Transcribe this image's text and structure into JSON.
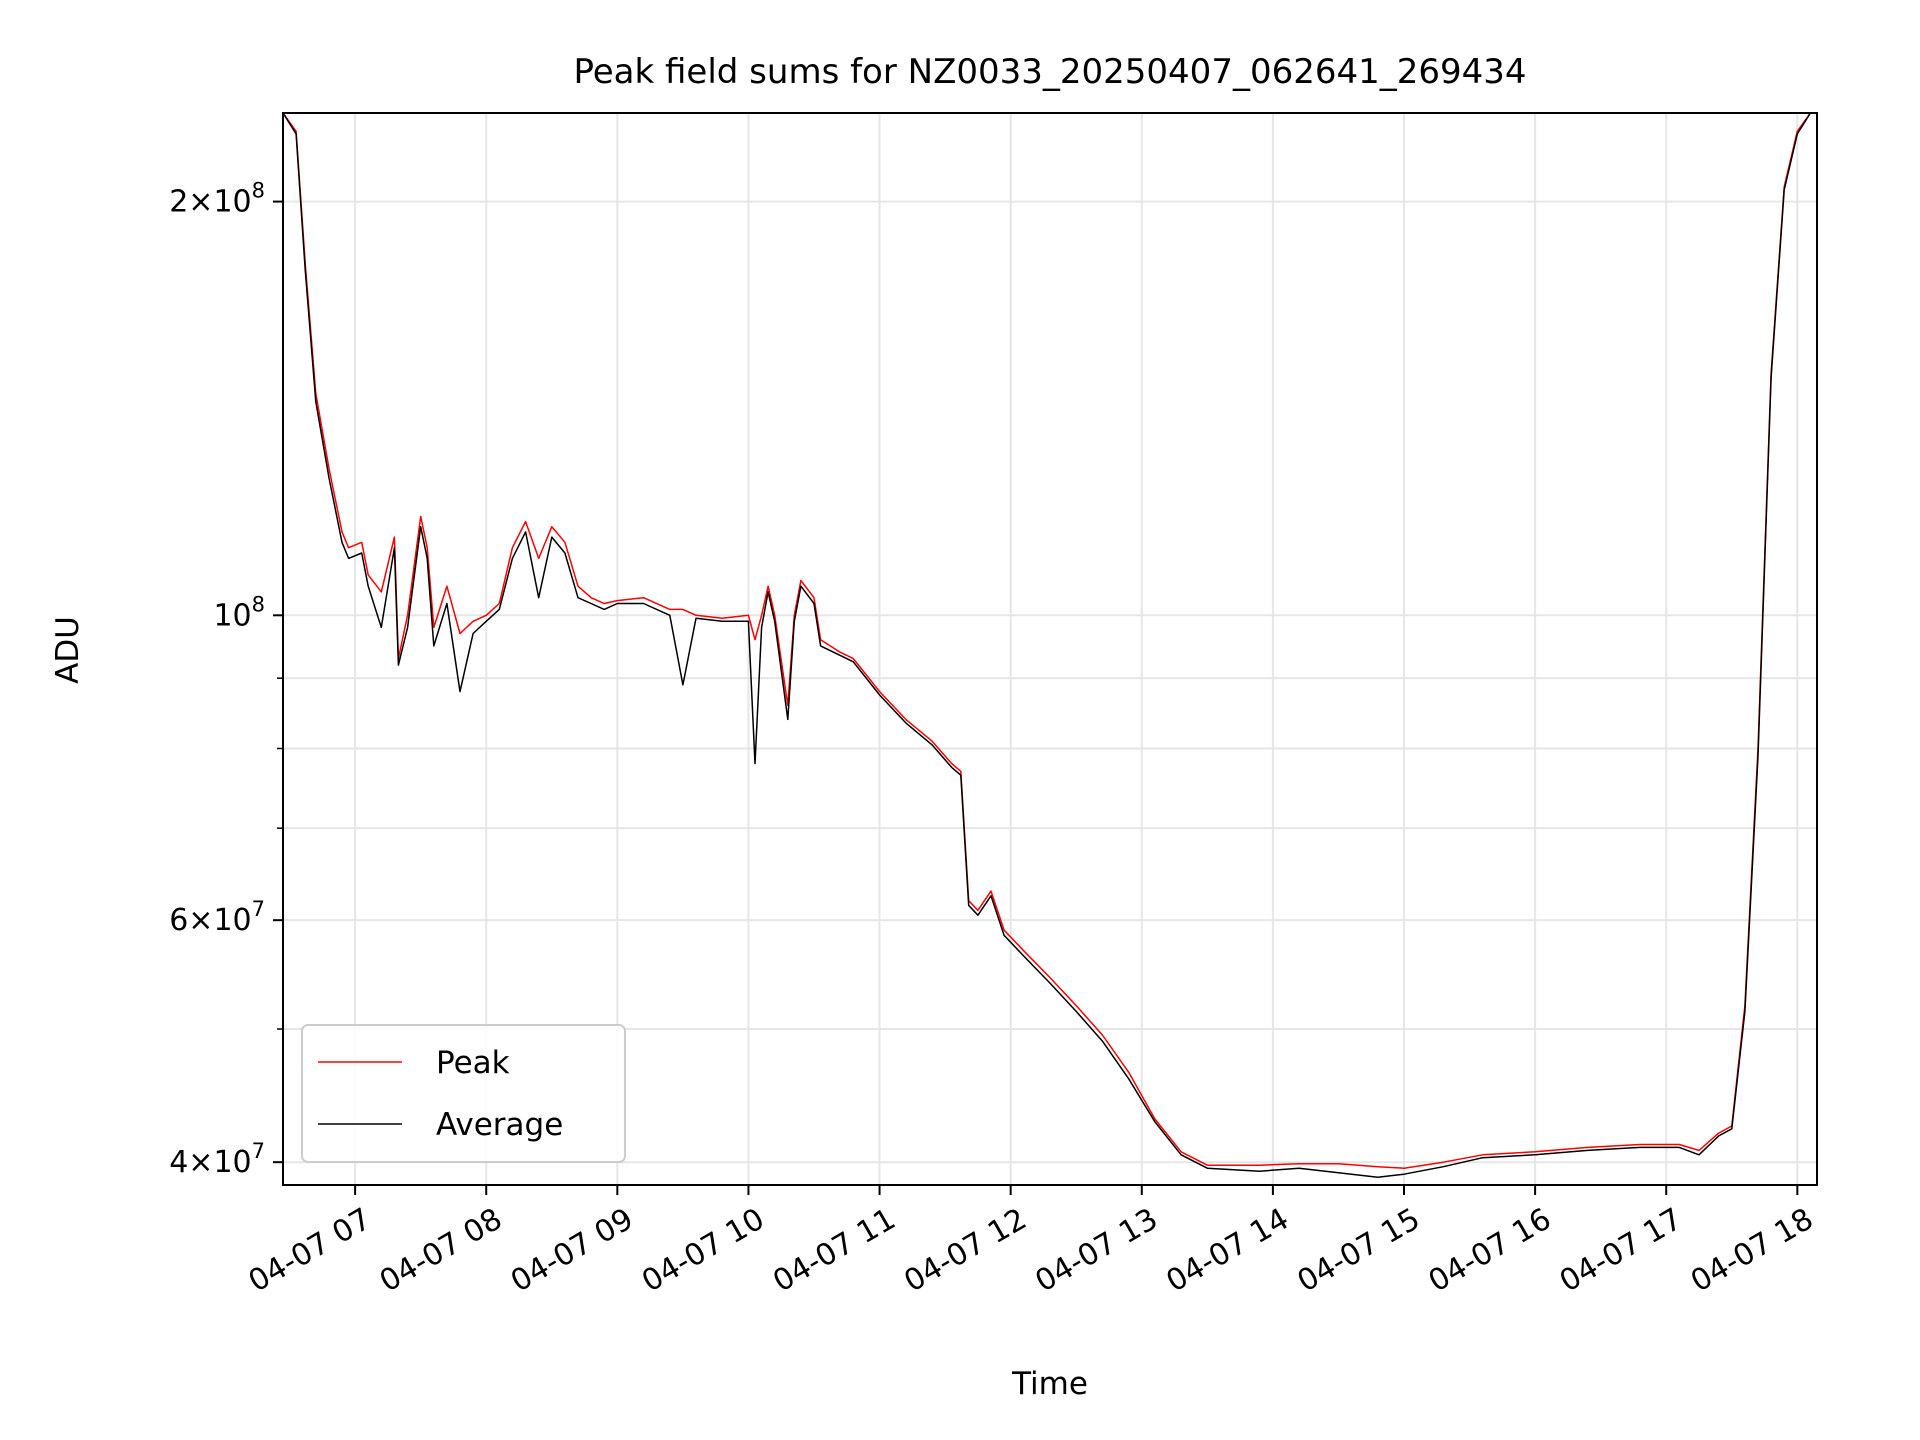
{
  "chart_data": {
    "type": "line",
    "title": "Peak field sums for NZ0033_20250407_062641_269434",
    "xlabel": "Time",
    "ylabel": "ADU",
    "x_unit": "hours",
    "x_range": [
      6.45,
      18.15
    ],
    "yscale": "log",
    "ylim": [
      38500000,
      232000000
    ],
    "grid": true,
    "legend_position": "lower left",
    "x_ticks": [
      {
        "value": 7,
        "label": "04-07 07"
      },
      {
        "value": 8,
        "label": "04-07 08"
      },
      {
        "value": 9,
        "label": "04-07 09"
      },
      {
        "value": 10,
        "label": "04-07 10"
      },
      {
        "value": 11,
        "label": "04-07 11"
      },
      {
        "value": 12,
        "label": "04-07 12"
      },
      {
        "value": 13,
        "label": "04-07 13"
      },
      {
        "value": 14,
        "label": "04-07 14"
      },
      {
        "value": 15,
        "label": "04-07 15"
      },
      {
        "value": 16,
        "label": "04-07 16"
      },
      {
        "value": 17,
        "label": "04-07 17"
      },
      {
        "value": 18,
        "label": "04-07 18"
      }
    ],
    "y_major_ticks": [
      {
        "value": 40000000,
        "mantissa": "4",
        "exponent": "7"
      },
      {
        "value": 60000000,
        "mantissa": "6",
        "exponent": "7"
      },
      {
        "value": 100000000,
        "mantissa": "",
        "exponent": "8"
      },
      {
        "value": 200000000,
        "mantissa": "2",
        "exponent": "8"
      }
    ],
    "y_minor_ticks": [
      50000000,
      70000000,
      80000000,
      90000000
    ],
    "tick_base": "10",
    "times_sign": "×",
    "series": [
      {
        "name": "Peak",
        "color": "#ff0000",
        "x": [
          6.45,
          6.55,
          6.62,
          6.7,
          6.8,
          6.9,
          6.95,
          7.05,
          7.1,
          7.2,
          7.3,
          7.33,
          7.4,
          7.5,
          7.55,
          7.6,
          7.7,
          7.8,
          7.9,
          8.0,
          8.1,
          8.2,
          8.3,
          8.4,
          8.5,
          8.6,
          8.7,
          8.8,
          8.9,
          9.0,
          9.2,
          9.4,
          9.5,
          9.6,
          9.8,
          10.0,
          10.05,
          10.1,
          10.15,
          10.2,
          10.3,
          10.35,
          10.4,
          10.5,
          10.55,
          10.7,
          10.8,
          11.0,
          11.2,
          11.4,
          11.55,
          11.62,
          11.68,
          11.75,
          11.85,
          11.95,
          12.1,
          12.3,
          12.5,
          12.7,
          12.9,
          13.1,
          13.3,
          13.5,
          13.7,
          13.9,
          14.2,
          14.5,
          14.8,
          15.0,
          15.3,
          15.6,
          16.0,
          16.4,
          16.8,
          17.1,
          17.25,
          17.4,
          17.5,
          17.6,
          17.7,
          17.8,
          17.9,
          18.0,
          18.1
        ],
        "y": [
          232000000,
          225000000,
          180000000,
          145000000,
          128000000,
          115000000,
          112000000,
          113000000,
          107000000,
          104000000,
          114000000,
          93000000,
          100000000,
          118000000,
          112000000,
          98000000,
          105000000,
          97000000,
          99000000,
          100000000,
          102000000,
          112000000,
          117000000,
          110000000,
          116000000,
          113000000,
          105000000,
          103000000,
          102000000,
          102500000,
          103000000,
          101000000,
          101000000,
          100000000,
          99500000,
          100000000,
          96000000,
          100000000,
          105000000,
          100000000,
          86000000,
          100000000,
          106000000,
          103000000,
          96000000,
          94000000,
          93000000,
          88000000,
          84000000,
          81000000,
          78000000,
          77000000,
          62000000,
          61000000,
          63000000,
          59000000,
          57000000,
          54500000,
          52000000,
          49500000,
          46500000,
          43000000,
          40700000,
          39800000,
          39800000,
          39800000,
          39900000,
          39900000,
          39700000,
          39600000,
          40000000,
          40500000,
          40700000,
          41000000,
          41200000,
          41200000,
          40800000,
          42000000,
          42500000,
          52000000,
          80000000,
          150000000,
          205000000,
          225000000,
          232000000
        ]
      },
      {
        "name": "Average",
        "color": "#000000",
        "x": [
          6.45,
          6.55,
          6.62,
          6.7,
          6.8,
          6.9,
          6.95,
          7.05,
          7.1,
          7.2,
          7.3,
          7.33,
          7.4,
          7.5,
          7.55,
          7.6,
          7.7,
          7.8,
          7.9,
          8.0,
          8.1,
          8.2,
          8.3,
          8.4,
          8.5,
          8.6,
          8.7,
          8.8,
          8.9,
          9.0,
          9.2,
          9.4,
          9.5,
          9.6,
          9.8,
          10.0,
          10.05,
          10.1,
          10.15,
          10.2,
          10.3,
          10.35,
          10.4,
          10.5,
          10.55,
          10.7,
          10.8,
          11.0,
          11.2,
          11.4,
          11.55,
          11.62,
          11.68,
          11.75,
          11.85,
          11.95,
          12.1,
          12.3,
          12.5,
          12.7,
          12.9,
          13.1,
          13.3,
          13.5,
          13.7,
          13.9,
          14.2,
          14.5,
          14.8,
          15.0,
          15.3,
          15.6,
          16.0,
          16.4,
          16.8,
          17.1,
          17.25,
          17.4,
          17.5,
          17.6,
          17.7,
          17.8,
          17.9,
          18.0,
          18.1
        ],
        "y": [
          232000000,
          224000000,
          178000000,
          143000000,
          126000000,
          113000000,
          110000000,
          111000000,
          105000000,
          98000000,
          112000000,
          92000000,
          98000000,
          116000000,
          110000000,
          95000000,
          102000000,
          88000000,
          97000000,
          99000000,
          101000000,
          110000000,
          115000000,
          103000000,
          114000000,
          111000000,
          103000000,
          102000000,
          101000000,
          102000000,
          102000000,
          100000000,
          89000000,
          99500000,
          99000000,
          99000000,
          78000000,
          98000000,
          104000000,
          99000000,
          84000000,
          99000000,
          105000000,
          102000000,
          95000000,
          93500000,
          92500000,
          87500000,
          83500000,
          80500000,
          77500000,
          76500000,
          61500000,
          60500000,
          62500000,
          58500000,
          56500000,
          54000000,
          51500000,
          49000000,
          46000000,
          42800000,
          40500000,
          39600000,
          39500000,
          39400000,
          39600000,
          39300000,
          39000000,
          39200000,
          39700000,
          40300000,
          40500000,
          40800000,
          41000000,
          41000000,
          40500000,
          41800000,
          42300000,
          51500000,
          79000000,
          149000000,
          204000000,
          224000000,
          232000000
        ]
      }
    ]
  }
}
